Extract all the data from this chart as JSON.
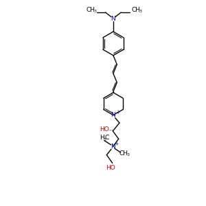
{
  "bg": "#ffffff",
  "black": "#000000",
  "blue": "#0000cc",
  "red": "#cc0000",
  "lw": 1.0,
  "lwd": 0.75,
  "fs": 6.5,
  "fss": 4.5,
  "figsize": [
    3.0,
    3.0
  ],
  "dpi": 100,
  "xlim": [
    0,
    10
  ],
  "ylim": [
    0,
    10
  ]
}
